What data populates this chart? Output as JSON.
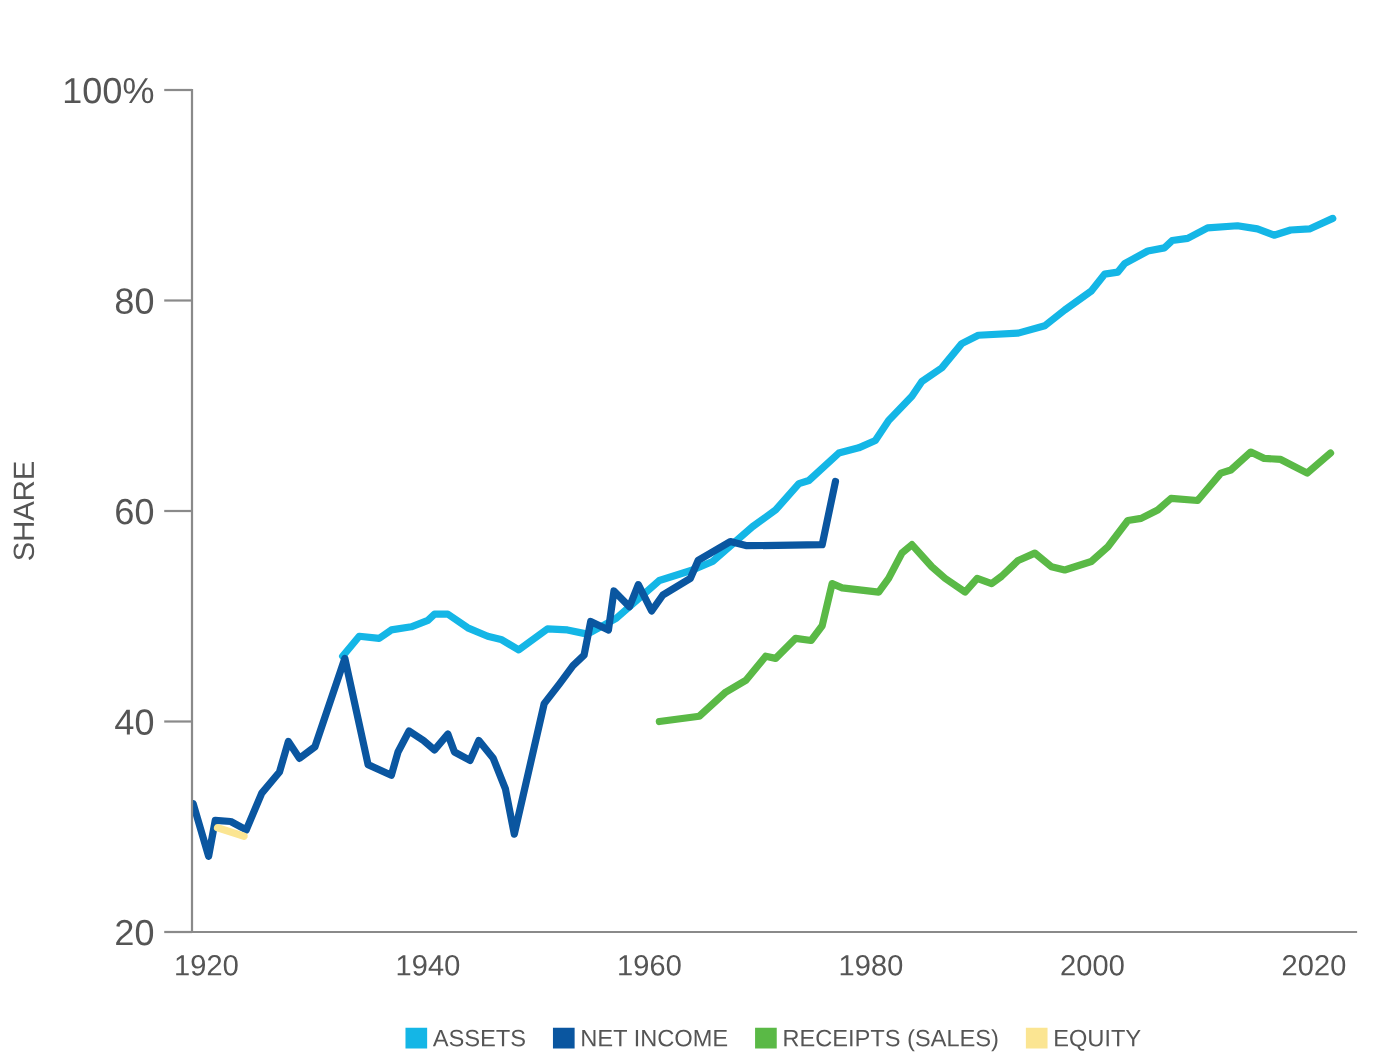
{
  "chart_data": {
    "type": "line",
    "ylabel": "SHARE",
    "xlim": [
      1918.7,
      2023.8
    ],
    "xticks": [
      1920,
      1940,
      1960,
      1980,
      2000,
      2020
    ],
    "ylim": [
      20,
      100
    ],
    "yticks": [
      20,
      40,
      60,
      80,
      {
        "value": 100,
        "label": "100%"
      }
    ],
    "grid": false,
    "legend": "bottom",
    "marker": "none",
    "line_style": "solid",
    "series": [
      {
        "name": "ASSETS",
        "color": "#14b6e6",
        "x": [
          1932.3,
          1933.8,
          1935.6,
          1936.7,
          1938.5,
          1940,
          1940.6,
          1941.8,
          1943.6,
          1945.4,
          1946.6,
          1948.2,
          1950.8,
          1952.6,
          1954.4,
          1957,
          1960.9,
          1963.9,
          1965.7,
          1969.3,
          1971.4,
          1973.5,
          1974.4,
          1977.1,
          1978.9,
          1980.4,
          1981.6,
          1983.7,
          1984.6,
          1986.4,
          1988.2,
          1989.7,
          1993.3,
          1995.7,
          1997.5,
          1999.9,
          2001.1,
          2002.3,
          2002.9,
          2005,
          2006.5,
          2007.2,
          2008.6,
          2010.4,
          2013.1,
          2014.9,
          2016.4,
          2017.9,
          2019.6,
          2021.7
        ],
        "values": [
          46.2,
          48.1,
          47.9,
          48.7,
          49.0,
          49.6,
          50.2,
          50.2,
          48.9,
          48.1,
          47.8,
          46.8,
          48.8,
          48.7,
          48.3,
          49.8,
          53.4,
          54.4,
          55.2,
          58.5,
          60.1,
          62.6,
          62.9,
          65.5,
          66.0,
          66.7,
          68.6,
          70.9,
          72.3,
          73.6,
          75.9,
          76.7,
          76.9,
          77.6,
          79.1,
          80.9,
          82.5,
          82.7,
          83.5,
          84.7,
          85.0,
          85.7,
          85.9,
          86.9,
          87.1,
          86.8,
          86.2,
          86.7,
          86.8,
          87.8
        ]
      },
      {
        "name": "NET INCOME",
        "color": "#0a56a0",
        "x": [
          1918.8,
          1920.2,
          1920.8,
          1922.2,
          1923.6,
          1925,
          1926.6,
          1927.4,
          1928.4,
          1929.8,
          1932.5,
          1934.6,
          1936.7,
          1937.3,
          1938.3,
          1939.6,
          1940.6,
          1941.8,
          1942.4,
          1943.8,
          1944.6,
          1945.9,
          1947,
          1947.8,
          1950.5,
          1951.9,
          1953.1,
          1954.1,
          1954.7,
          1956.3,
          1956.8,
          1958.2,
          1959,
          1960.2,
          1961.2,
          1963.7,
          1964.4,
          1967.3,
          1968.8,
          1975.6,
          1976.8
        ],
        "values": [
          32.2,
          27.2,
          30.6,
          30.5,
          29.7,
          33.2,
          35.2,
          38.1,
          36.5,
          37.6,
          46.0,
          35.9,
          34.9,
          37.1,
          39.1,
          38.2,
          37.3,
          38.8,
          37.1,
          36.3,
          38.2,
          36.5,
          33.6,
          29.3,
          41.7,
          43.6,
          45.3,
          46.3,
          49.5,
          48.7,
          52.4,
          50.9,
          53.0,
          50.5,
          52.0,
          53.6,
          55.3,
          57.1,
          56.7,
          56.8,
          62.8
        ]
      },
      {
        "name": "RECEIPTS (SALES)",
        "color": "#5ab946",
        "x": [
          1960.9,
          1964.5,
          1966.9,
          1968.7,
          1970.5,
          1971.4,
          1973.2,
          1974.6,
          1975.6,
          1976.5,
          1977.4,
          1980.7,
          1981.6,
          1982.8,
          1983.7,
          1985.5,
          1986.7,
          1988.5,
          1989.6,
          1990.9,
          1991.8,
          1993.3,
          1994.8,
          1996.3,
          1997.5,
          1999.9,
          2001.4,
          2003.2,
          2004.4,
          2005.9,
          2007.1,
          2009.5,
          2011.6,
          2012.5,
          2014.3,
          2015.5,
          2017,
          2019.4,
          2021.5
        ],
        "values": [
          40.0,
          40.5,
          42.8,
          43.9,
          46.2,
          46.0,
          47.9,
          47.7,
          49.1,
          53.1,
          52.7,
          52.3,
          53.6,
          56.0,
          56.8,
          54.7,
          53.6,
          52.3,
          53.6,
          53.1,
          53.8,
          55.3,
          56.0,
          54.7,
          54.4,
          55.2,
          56.6,
          59.1,
          59.3,
          60.1,
          61.2,
          61.0,
          63.6,
          63.9,
          65.6,
          65.0,
          64.9,
          63.6,
          65.5
        ]
      },
      {
        "name": "EQUITY",
        "color": "#fbe592",
        "x": [
          1921,
          1923.4
        ],
        "values": [
          29.9,
          29.1
        ]
      }
    ]
  }
}
